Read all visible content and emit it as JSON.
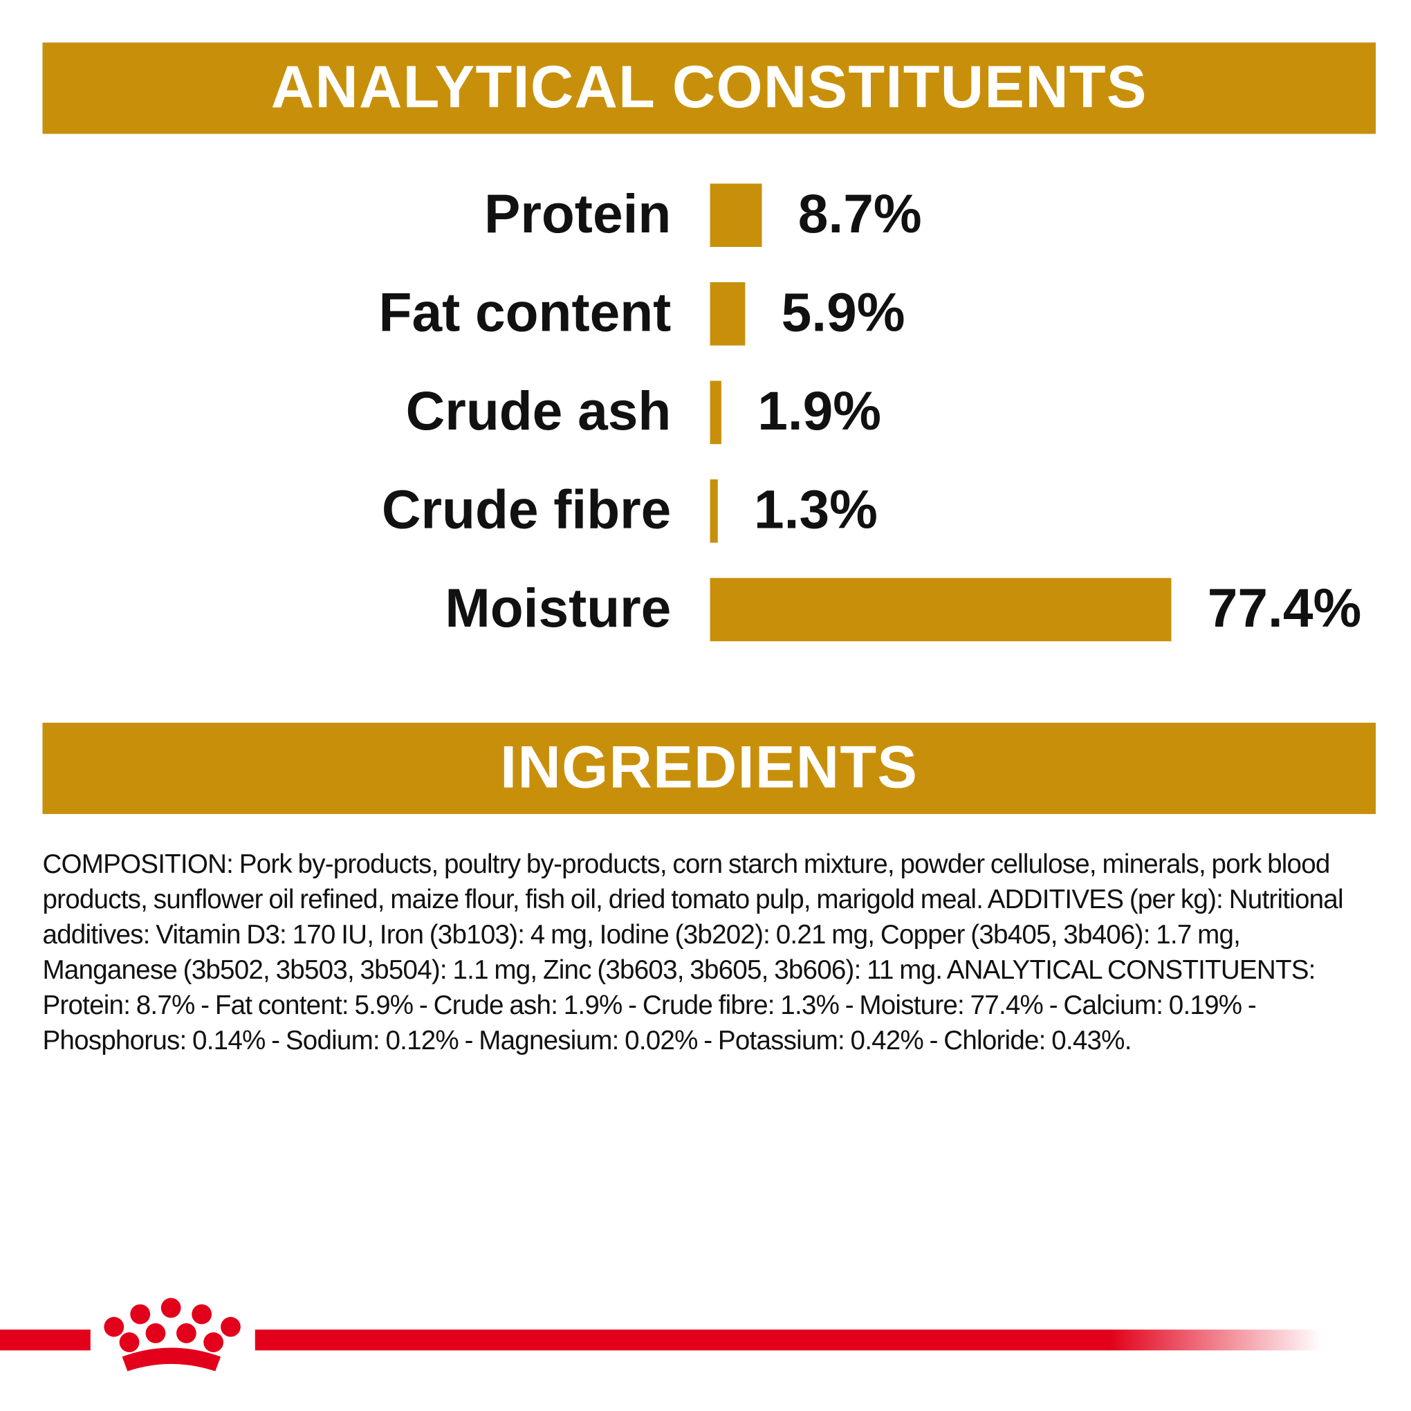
{
  "chart_data": {
    "type": "bar",
    "title": "ANALYTICAL CONSTITUENTS",
    "categories": [
      "Protein",
      "Fat content",
      "Crude ash",
      "Crude fibre",
      "Moisture"
    ],
    "values": [
      8.7,
      5.9,
      1.9,
      1.3,
      77.4
    ],
    "value_labels": [
      "8.7%",
      "5.9%",
      "1.9%",
      "1.3%",
      "77.4%"
    ],
    "color": "#c8900a"
  },
  "ingredients": {
    "title": "INGREDIENTS",
    "text": "COMPOSITION: Pork by-products, poultry by-products, corn starch mixture, powder cellulose, minerals, pork blood products, sunflower oil refined, maize flour, fish oil, dried tomato pulp, marigold meal. ADDITIVES (per kg): Nutritional additives: Vitamin D3: 170 IU, Iron (3b103): 4 mg, Iodine (3b202): 0.21 mg, Copper (3b405, 3b406): 1.7 mg, Manganese (3b502, 3b503, 3b504): 1.1 mg, Zinc (3b603, 3b605, 3b606): 11 mg. ANALYTICAL CONSTITUENTS: Protein: 8.7% - Fat content: 5.9% - Crude ash: 1.9% - Crude fibre: 1.3% - Moisture: 77.4% - Calcium: 0.19% - Phosphorus: 0.14% - Sodium: 0.12% - Magnesium: 0.02% - Potassium: 0.42% - Chloride: 0.43%."
  }
}
